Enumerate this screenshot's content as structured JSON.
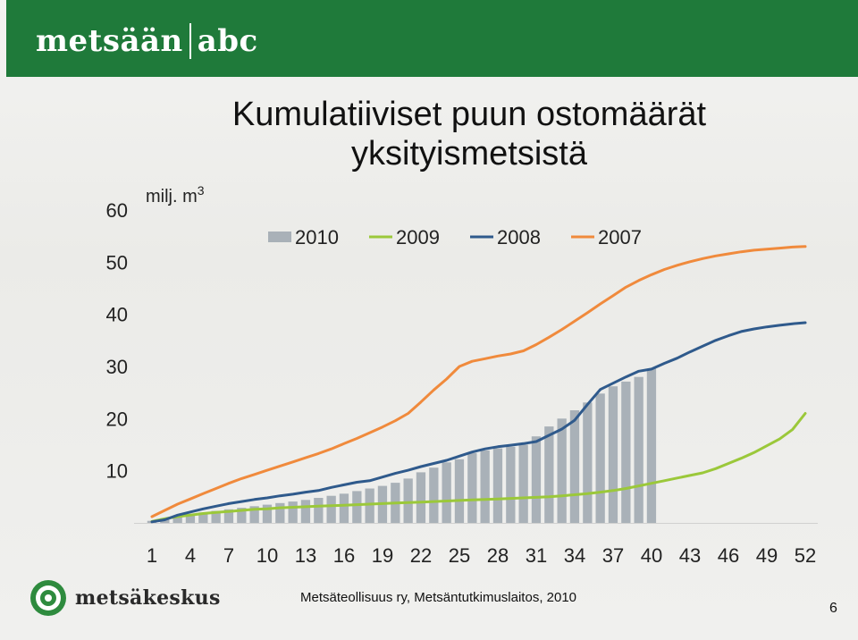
{
  "header": {
    "logo_left": "metsään",
    "logo_right": "abc"
  },
  "title_line1": "Kumulatiiviset puun ostomäärät",
  "title_line2": "yksityismetsistä",
  "footer": {
    "logo_text": "metsäkeskus",
    "source": "Metsäteollisuus ry, Metsäntutkimuslaitos, 2010",
    "page_number": "6"
  },
  "colors": {
    "banner": "#1f7a3a",
    "bars_2010": "#a9b1b8",
    "line_2009": "#9bc83a",
    "line_2008": "#2f5a8c",
    "line_2007": "#f08a3c"
  },
  "chart_data": {
    "type": "bar",
    "ylabel": "milj. m³",
    "ylim": [
      0,
      60
    ],
    "yticks": [
      10,
      20,
      30,
      40,
      50,
      60
    ],
    "xlim": [
      1,
      52
    ],
    "xticks": [
      1,
      4,
      7,
      10,
      13,
      16,
      19,
      22,
      25,
      28,
      31,
      34,
      37,
      40,
      43,
      46,
      49,
      52
    ],
    "legend_position": "top",
    "grid": false,
    "series": [
      {
        "name": "2010",
        "kind": "bar",
        "x": [
          1,
          2,
          3,
          4,
          5,
          6,
          7,
          8,
          9,
          10,
          11,
          12,
          13,
          14,
          15,
          16,
          17,
          18,
          19,
          20,
          21,
          22,
          23,
          24,
          25,
          26,
          27,
          28,
          29,
          30,
          31,
          32,
          33,
          34,
          35,
          36,
          37,
          38,
          39,
          40
        ],
        "values": [
          0.4,
          0.9,
          1.3,
          1.7,
          2.0,
          2.3,
          2.6,
          2.9,
          3.2,
          3.5,
          3.8,
          4.1,
          4.4,
          4.8,
          5.2,
          5.6,
          6.1,
          6.6,
          7.1,
          7.7,
          8.5,
          9.7,
          10.6,
          11.6,
          12.2,
          13.4,
          13.9,
          14.3,
          14.6,
          15.0,
          16.6,
          18.5,
          20.0,
          21.6,
          23.1,
          24.8,
          26.2,
          27.1,
          28.0,
          29.6
        ]
      },
      {
        "name": "2009",
        "kind": "line",
        "x": [
          1,
          2,
          3,
          4,
          5,
          6,
          7,
          8,
          9,
          10,
          11,
          12,
          13,
          14,
          15,
          16,
          17,
          18,
          19,
          20,
          21,
          22,
          23,
          24,
          25,
          26,
          27,
          28,
          29,
          30,
          31,
          32,
          33,
          34,
          35,
          36,
          37,
          38,
          39,
          40,
          41,
          42,
          43,
          44,
          45,
          46,
          47,
          48,
          49,
          50,
          51,
          52
        ],
        "values": [
          0.3,
          0.8,
          1.2,
          1.5,
          1.8,
          2.0,
          2.2,
          2.4,
          2.6,
          2.7,
          2.9,
          3.0,
          3.1,
          3.2,
          3.3,
          3.4,
          3.5,
          3.6,
          3.7,
          3.8,
          3.9,
          4.0,
          4.1,
          4.2,
          4.3,
          4.4,
          4.5,
          4.6,
          4.7,
          4.8,
          4.9,
          5.0,
          5.2,
          5.4,
          5.6,
          5.9,
          6.2,
          6.6,
          7.1,
          7.6,
          8.1,
          8.6,
          9.1,
          9.6,
          10.4,
          11.4,
          12.4,
          13.5,
          14.8,
          16.1,
          17.9,
          21.0
        ]
      },
      {
        "name": "2008",
        "kind": "line",
        "x": [
          1,
          2,
          3,
          4,
          5,
          6,
          7,
          8,
          9,
          10,
          11,
          12,
          13,
          14,
          15,
          16,
          17,
          18,
          19,
          20,
          21,
          22,
          23,
          24,
          25,
          26,
          27,
          28,
          29,
          30,
          31,
          32,
          33,
          34,
          35,
          36,
          37,
          38,
          39,
          40,
          41,
          42,
          43,
          44,
          45,
          46,
          47,
          48,
          49,
          50,
          51,
          52
        ],
        "values": [
          0.2,
          0.6,
          1.5,
          2.1,
          2.7,
          3.2,
          3.7,
          4.1,
          4.5,
          4.8,
          5.2,
          5.5,
          5.9,
          6.2,
          6.8,
          7.3,
          7.8,
          8.1,
          8.8,
          9.5,
          10.1,
          10.8,
          11.4,
          12.0,
          12.8,
          13.6,
          14.2,
          14.6,
          14.9,
          15.2,
          15.6,
          16.8,
          18.0,
          19.7,
          22.7,
          25.6,
          26.8,
          28.0,
          29.1,
          29.5,
          30.6,
          31.6,
          32.8,
          33.9,
          35.0,
          35.9,
          36.7,
          37.2,
          37.6,
          37.9,
          38.2,
          38.4
        ]
      },
      {
        "name": "2007",
        "kind": "line",
        "x": [
          1,
          2,
          3,
          4,
          5,
          6,
          7,
          8,
          9,
          10,
          11,
          12,
          13,
          14,
          15,
          16,
          17,
          18,
          19,
          20,
          21,
          22,
          23,
          24,
          25,
          26,
          27,
          28,
          29,
          30,
          31,
          32,
          33,
          34,
          35,
          36,
          37,
          38,
          39,
          40,
          41,
          42,
          43,
          44,
          45,
          46,
          47,
          48,
          49,
          50,
          51,
          52
        ],
        "values": [
          1.2,
          2.4,
          3.6,
          4.6,
          5.6,
          6.6,
          7.6,
          8.5,
          9.3,
          10.1,
          10.9,
          11.7,
          12.5,
          13.3,
          14.2,
          15.2,
          16.2,
          17.3,
          18.4,
          19.6,
          21.0,
          23.2,
          25.5,
          27.6,
          30.0,
          31.0,
          31.5,
          32.0,
          32.4,
          33.0,
          34.2,
          35.6,
          37.1,
          38.7,
          40.3,
          42.0,
          43.6,
          45.2,
          46.5,
          47.6,
          48.6,
          49.4,
          50.1,
          50.7,
          51.2,
          51.6,
          52.0,
          52.3,
          52.5,
          52.7,
          52.9,
          53.0
        ]
      }
    ]
  }
}
